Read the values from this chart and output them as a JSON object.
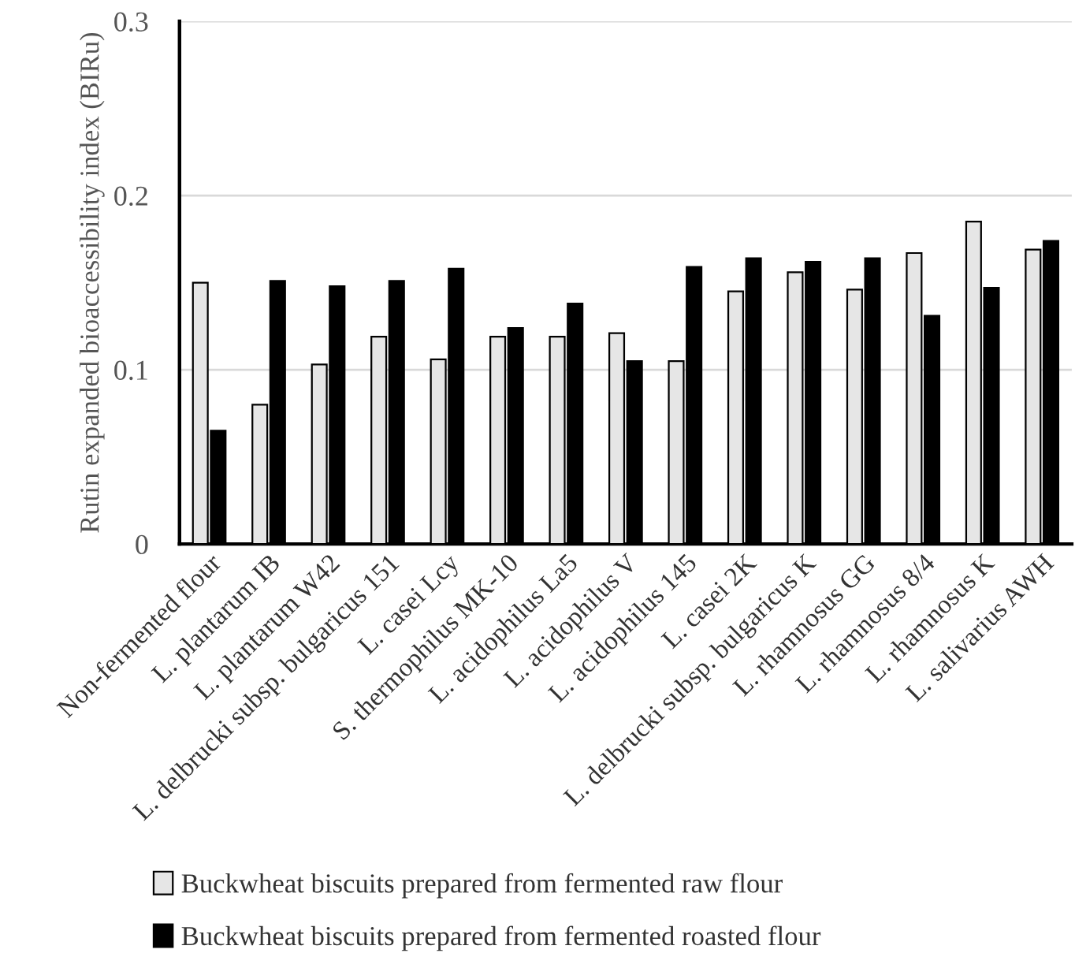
{
  "chart_data": {
    "type": "bar",
    "ylabel": "Rutin expanded bioaccessibility index (BIRu)",
    "categories": [
      "Non-fermented flour",
      "L. plantarum IB",
      "L. plantarum W42",
      "L. delbrucki subsp. bulgaricus 151",
      "L. casei Lcy",
      "S. thermophilus MK-10",
      "L. acidophilus La5",
      "L. acidophilus V",
      "L. acidophilus 145",
      "L. casei 2K",
      "L. delbrucki subsp. bulgaricus K",
      "L. rhamnosus GG",
      "L. rhamnosus 8/4",
      "L. rhamnosus K",
      "L. salivarius AWH"
    ],
    "series": [
      {
        "name": "Buckwheat biscuits prepared from fermented raw flour",
        "color": "#e6e6e6",
        "values": [
          0.15,
          0.08,
          0.103,
          0.119,
          0.106,
          0.119,
          0.119,
          0.121,
          0.105,
          0.145,
          0.156,
          0.146,
          0.167,
          0.185,
          0.169
        ]
      },
      {
        "name": "Buckwheat biscuits prepared from fermented roasted flour",
        "color": "#000000",
        "values": [
          0.065,
          0.151,
          0.148,
          0.151,
          0.158,
          0.124,
          0.138,
          0.105,
          0.159,
          0.164,
          0.162,
          0.164,
          0.131,
          0.147,
          0.174
        ]
      }
    ],
    "ylim": [
      0,
      0.3
    ],
    "yticks": [
      {
        "value": 0,
        "label": "0"
      },
      {
        "value": 0.1,
        "label": "0.1"
      },
      {
        "value": 0.2,
        "label": "0.2"
      },
      {
        "value": 0.3,
        "label": "0.3"
      }
    ],
    "grid": "y",
    "legend": "bottom"
  }
}
